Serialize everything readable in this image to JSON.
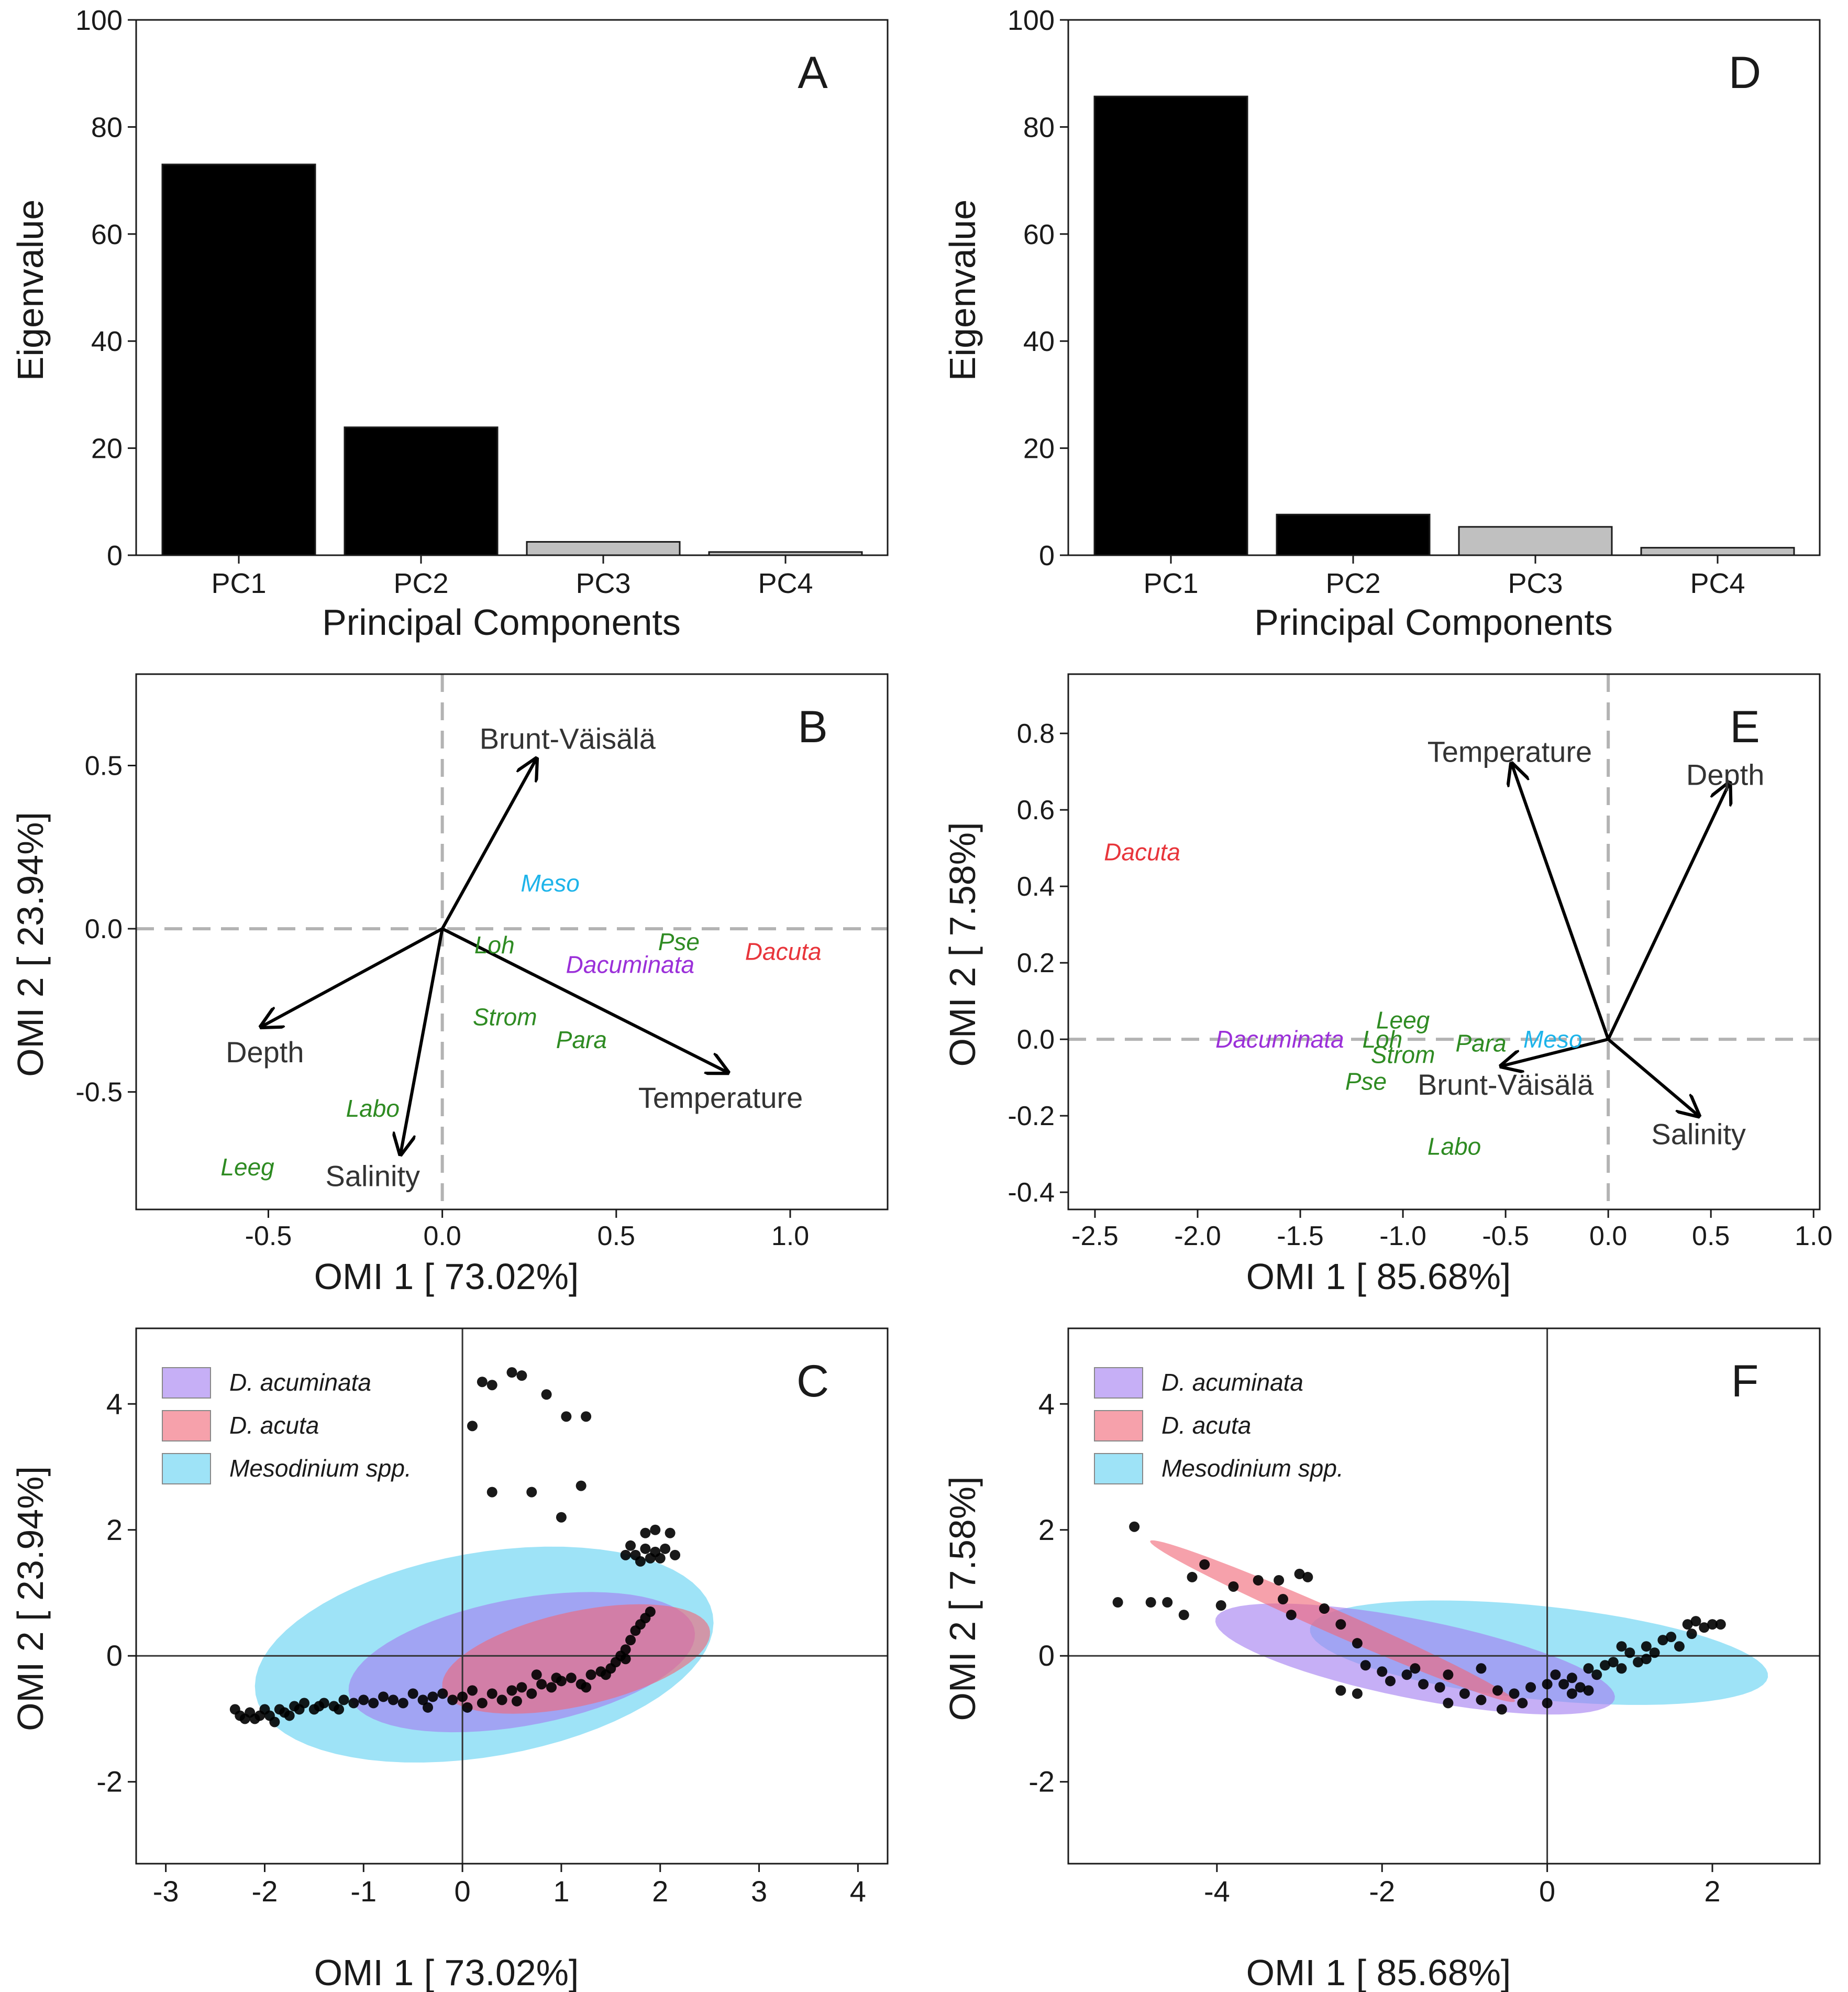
{
  "colors": {
    "bar_primary": "#000000",
    "bar_secondary": "#c0c0c0",
    "loading": "#000000",
    "guide": "#b3b3b3",
    "species_group": "#2e8b22",
    "meso": "#1eb4ea",
    "dacuminata": "#9b30d9",
    "dacuta": "#e8353b",
    "ellipse_acuminata": "#a37ef0",
    "ellipse_acuta": "#f06878",
    "ellipse_meso": "#62d2f2",
    "point": "#000000",
    "point_meso": "#0b3a4a",
    "point_acuminata": "#2a1460",
    "point_acuta": "#5a1038"
  },
  "chart_data": [
    {
      "panel": "A",
      "type": "bar",
      "categories": [
        "PC1",
        "PC2",
        "PC3",
        "PC4"
      ],
      "values": [
        73.0,
        23.9,
        2.5,
        0.6
      ],
      "retained": [
        true,
        true,
        false,
        false
      ],
      "xlabel": "Principal Components",
      "ylabel": "Eigenvalue",
      "ylim": [
        0,
        100
      ],
      "yticks": [
        "0",
        "20",
        "40",
        "60",
        "80",
        "100"
      ]
    },
    {
      "panel": "D",
      "type": "bar",
      "categories": [
        "PC1",
        "PC2",
        "PC3",
        "PC4"
      ],
      "values": [
        85.7,
        7.6,
        5.3,
        1.4
      ],
      "retained": [
        true,
        true,
        false,
        false
      ],
      "xlabel": "Principal Components",
      "ylabel": "Eigenvalue",
      "ylim": [
        0,
        100
      ],
      "yticks": [
        "0",
        "20",
        "40",
        "60",
        "80",
        "100"
      ]
    },
    {
      "panel": "B",
      "type": "scatter",
      "subtype": "biplot",
      "xlabel": "OMI 1 [ 73.02%]",
      "ylabel": "OMI 2 [ 23.94%]",
      "xlim": [
        -0.88,
        1.28
      ],
      "ylim": [
        -0.86,
        0.78
      ],
      "xticks": [
        "-0.5",
        "0.0",
        "0.5",
        "1.0"
      ],
      "yticks": [
        "-0.5",
        "0.0",
        "0.5"
      ],
      "arrows": [
        {
          "label": "Brunt-Väisälä",
          "x": 0.27,
          "y": 0.52,
          "lx": 0.36,
          "ly": 0.58
        },
        {
          "label": "Depth",
          "x": -0.52,
          "y": -0.3,
          "lx": -0.51,
          "ly": -0.38
        },
        {
          "label": "Salinity",
          "x": -0.12,
          "y": -0.69,
          "lx": -0.2,
          "ly": -0.76
        },
        {
          "label": "Temperature",
          "x": 0.82,
          "y": -0.44,
          "lx": 0.8,
          "ly": -0.52
        }
      ],
      "species": [
        {
          "label": "Meso",
          "x": 0.31,
          "y": 0.14,
          "group": "meso"
        },
        {
          "label": "Loh",
          "x": 0.15,
          "y": -0.05,
          "group": "other"
        },
        {
          "label": "Pse",
          "x": 0.68,
          "y": -0.04,
          "group": "other"
        },
        {
          "label": "Dacuminata",
          "x": 0.54,
          "y": -0.11,
          "group": "dacuminata"
        },
        {
          "label": "Dacuta",
          "x": 0.98,
          "y": -0.07,
          "group": "dacuta"
        },
        {
          "label": "Strom",
          "x": 0.18,
          "y": -0.27,
          "group": "other"
        },
        {
          "label": "Para",
          "x": 0.4,
          "y": -0.34,
          "group": "other"
        },
        {
          "label": "Labo",
          "x": -0.2,
          "y": -0.55,
          "group": "other"
        },
        {
          "label": "Leeg",
          "x": -0.56,
          "y": -0.73,
          "group": "other"
        }
      ]
    },
    {
      "panel": "E",
      "type": "scatter",
      "subtype": "biplot",
      "xlabel": "OMI 1 [ 85.68%]",
      "ylabel": "OMI 2 [ 7.58%]",
      "xlim": [
        -2.63,
        1.03
      ],
      "ylim": [
        -0.445,
        0.955
      ],
      "xticks": [
        "-2.5",
        "-2.0",
        "-1.5",
        "-1.0",
        "-0.5",
        "0.0",
        "0.5",
        "1.0"
      ],
      "yticks": [
        "-0.4",
        "-0.2",
        "0.0",
        "0.2",
        "0.4",
        "0.6",
        "0.8"
      ],
      "arrows": [
        {
          "label": "Temperature",
          "x": -0.47,
          "y": 0.72,
          "lx": -0.48,
          "ly": 0.75
        },
        {
          "label": "Depth",
          "x": 0.59,
          "y": 0.67,
          "lx": 0.57,
          "ly": 0.69
        },
        {
          "label": "Brunt-Väisälä",
          "x": -0.52,
          "y": -0.07,
          "lx": -0.5,
          "ly": -0.12
        },
        {
          "label": "Salinity",
          "x": 0.44,
          "y": -0.2,
          "lx": 0.44,
          "ly": -0.25
        }
      ],
      "species": [
        {
          "label": "Dacuta",
          "x": -2.27,
          "y": 0.49,
          "group": "dacuta"
        },
        {
          "label": "Dacuminata",
          "x": -1.6,
          "y": 0.0,
          "group": "dacuminata"
        },
        {
          "label": "Loh",
          "x": -1.1,
          "y": 0.0,
          "group": "other"
        },
        {
          "label": "Leeg",
          "x": -1.0,
          "y": 0.05,
          "group": "other"
        },
        {
          "label": "Strom",
          "x": -1.0,
          "y": -0.04,
          "group": "other"
        },
        {
          "label": "Para",
          "x": -0.62,
          "y": -0.01,
          "group": "other"
        },
        {
          "label": "Meso",
          "x": -0.27,
          "y": 0.0,
          "group": "meso"
        },
        {
          "label": "Pse",
          "x": -1.18,
          "y": -0.11,
          "group": "other"
        },
        {
          "label": "Labo",
          "x": -0.75,
          "y": -0.28,
          "group": "other"
        }
      ]
    },
    {
      "panel": "C",
      "type": "scatter",
      "subtype": "niche-ellipses",
      "xlabel": "OMI 1 [ 73.02%]",
      "ylabel": "OMI 2 [ 23.94%]",
      "xlim": [
        -3.3,
        4.3
      ],
      "ylim": [
        -3.3,
        5.2
      ],
      "xticks": [
        "-3",
        "-2",
        "-1",
        "0",
        "1",
        "2",
        "3",
        "4"
      ],
      "yticks": [
        "-2",
        "0",
        "2",
        "4"
      ],
      "legend": [
        {
          "label": "D. acuminata",
          "color": "ellipse_acuminata"
        },
        {
          "label": "D. acuta",
          "color": "ellipse_acuta"
        },
        {
          "label": "Mesodinium spp.",
          "color": "ellipse_meso"
        }
      ],
      "ellipses": [
        {
          "name": "Mesodinium spp.",
          "color": "ellipse_meso",
          "cx": 0.22,
          "cy": 0.02,
          "rx": 2.42,
          "ry": 1.57,
          "angle_deg": 22
        },
        {
          "name": "D. acuminata",
          "color": "ellipse_acuminata",
          "cx": 0.6,
          "cy": -0.1,
          "rx": 1.83,
          "ry": 0.98,
          "angle_deg": 20
        },
        {
          "name": "D. acuta",
          "color": "ellipse_acuta",
          "cx": 1.15,
          "cy": -0.05,
          "rx": 1.44,
          "ry": 0.72,
          "angle_deg": 23
        }
      ],
      "points": [
        [
          -2.3,
          -0.85
        ],
        [
          -2.25,
          -0.95
        ],
        [
          -2.2,
          -1.0
        ],
        [
          -2.15,
          -0.9
        ],
        [
          -2.1,
          -1.0
        ],
        [
          -2.05,
          -0.95
        ],
        [
          -2.0,
          -0.85
        ],
        [
          -1.95,
          -0.95
        ],
        [
          -1.9,
          -1.05
        ],
        [
          -1.85,
          -0.85
        ],
        [
          -1.8,
          -0.9
        ],
        [
          -1.75,
          -0.95
        ],
        [
          -1.7,
          -0.8
        ],
        [
          -1.65,
          -0.85
        ],
        [
          -1.6,
          -0.75
        ],
        [
          -1.5,
          -0.85
        ],
        [
          -1.45,
          -0.8
        ],
        [
          -1.4,
          -0.75
        ],
        [
          -1.3,
          -0.8
        ],
        [
          -1.25,
          -0.85
        ],
        [
          -1.2,
          -0.7
        ],
        [
          -1.1,
          -0.75
        ],
        [
          -1.0,
          -0.7
        ],
        [
          -0.9,
          -0.75
        ],
        [
          -0.8,
          -0.65
        ],
        [
          -0.7,
          -0.7
        ],
        [
          -0.6,
          -0.75
        ],
        [
          -0.5,
          -0.6
        ],
        [
          -0.4,
          -0.7
        ],
        [
          -0.3,
          -0.65
        ],
        [
          -0.2,
          -0.6
        ],
        [
          -0.1,
          -0.7
        ],
        [
          0.0,
          -0.65
        ],
        [
          0.1,
          -0.55
        ],
        [
          0.2,
          -0.75
        ],
        [
          0.3,
          -0.6
        ],
        [
          0.4,
          -0.7
        ],
        [
          0.5,
          -0.55
        ],
        [
          0.6,
          -0.5
        ],
        [
          0.7,
          -0.6
        ],
        [
          0.8,
          -0.45
        ],
        [
          0.9,
          -0.5
        ],
        [
          1.0,
          -0.4
        ],
        [
          1.1,
          -0.35
        ],
        [
          1.2,
          -0.45
        ],
        [
          1.3,
          -0.3
        ],
        [
          1.4,
          -0.25
        ],
        [
          1.5,
          -0.2
        ],
        [
          1.55,
          -0.1
        ],
        [
          1.6,
          0.0
        ],
        [
          1.65,
          0.1
        ],
        [
          1.7,
          0.25
        ],
        [
          1.75,
          0.4
        ],
        [
          1.8,
          0.5
        ],
        [
          1.85,
          0.6
        ],
        [
          1.9,
          0.7
        ],
        [
          1.65,
          -0.05
        ],
        [
          1.45,
          -0.3
        ],
        [
          1.25,
          -0.5
        ],
        [
          0.95,
          -0.35
        ],
        [
          0.55,
          -0.72
        ],
        [
          0.05,
          -0.82
        ],
        [
          -0.35,
          -0.82
        ],
        [
          0.75,
          -0.3
        ],
        [
          1.65,
          1.6
        ],
        [
          1.7,
          1.75
        ],
        [
          1.75,
          1.6
        ],
        [
          1.8,
          1.5
        ],
        [
          1.85,
          1.7
        ],
        [
          1.9,
          1.55
        ],
        [
          1.95,
          1.65
        ],
        [
          2.0,
          1.55
        ],
        [
          2.05,
          1.7
        ],
        [
          2.15,
          1.6
        ],
        [
          1.85,
          1.95
        ],
        [
          1.95,
          2.0
        ],
        [
          2.1,
          1.95
        ],
        [
          0.2,
          4.35
        ],
        [
          0.3,
          4.3
        ],
        [
          0.5,
          4.5
        ],
        [
          0.6,
          4.45
        ],
        [
          0.85,
          4.15
        ],
        [
          1.05,
          3.8
        ],
        [
          1.25,
          3.8
        ],
        [
          0.1,
          3.65
        ],
        [
          0.3,
          2.6
        ],
        [
          0.7,
          2.6
        ],
        [
          1.2,
          2.7
        ],
        [
          1.0,
          2.2
        ]
      ]
    },
    {
      "panel": "F",
      "type": "scatter",
      "subtype": "niche-ellipses",
      "xlabel": "OMI 1 [ 85.68%]",
      "ylabel": "OMI 2 [ 7.58%]",
      "xlim": [
        -5.8,
        3.3
      ],
      "ylim": [
        -3.3,
        5.2
      ],
      "xticks": [
        "-4",
        "-2",
        "0",
        "2"
      ],
      "yticks": [
        "-2",
        "0",
        "2",
        "4"
      ],
      "legend": [
        {
          "label": "D. acuminata",
          "color": "ellipse_acuminata"
        },
        {
          "label": "D. acuta",
          "color": "ellipse_acuta"
        },
        {
          "label": "Mesodinium spp.",
          "color": "ellipse_meso"
        }
      ],
      "ellipses": [
        {
          "name": "Mesodinium spp.",
          "color": "ellipse_meso",
          "cx": -0.1,
          "cy": 0.05,
          "rx": 2.8,
          "ry": 0.74,
          "angle_deg": -8
        },
        {
          "name": "D. acuminata",
          "color": "ellipse_acuminata",
          "cx": -1.6,
          "cy": -0.05,
          "rx": 2.5,
          "ry": 0.62,
          "angle_deg": -15
        },
        {
          "name": "D. acuta",
          "color": "ellipse_acuta",
          "cx": -2.6,
          "cy": 0.55,
          "rx": 2.55,
          "ry": 0.18,
          "angle_deg": -30
        }
      ],
      "points": [
        [
          -5.2,
          0.85
        ],
        [
          -5.0,
          2.05
        ],
        [
          -4.8,
          0.85
        ],
        [
          -4.6,
          0.85
        ],
        [
          -4.4,
          0.65
        ],
        [
          -4.3,
          1.25
        ],
        [
          -4.15,
          1.45
        ],
        [
          -3.95,
          0.8
        ],
        [
          -3.8,
          1.1
        ],
        [
          -3.5,
          1.2
        ],
        [
          -3.25,
          1.2
        ],
        [
          -3.2,
          0.9
        ],
        [
          -3.1,
          0.65
        ],
        [
          -3.0,
          1.3
        ],
        [
          -2.9,
          1.25
        ],
        [
          -2.7,
          0.75
        ],
        [
          -2.5,
          0.5
        ],
        [
          -2.3,
          0.2
        ],
        [
          -2.2,
          -0.15
        ],
        [
          -2.0,
          -0.25
        ],
        [
          -1.9,
          -0.4
        ],
        [
          -1.7,
          -0.3
        ],
        [
          -1.5,
          -0.45
        ],
        [
          -1.3,
          -0.5
        ],
        [
          -1.2,
          -0.75
        ],
        [
          -1.0,
          -0.6
        ],
        [
          -0.8,
          -0.7
        ],
        [
          -0.6,
          -0.55
        ],
        [
          -0.4,
          -0.6
        ],
        [
          -0.2,
          -0.5
        ],
        [
          0.0,
          -0.45
        ],
        [
          0.1,
          -0.3
        ],
        [
          0.2,
          -0.45
        ],
        [
          0.3,
          -0.35
        ],
        [
          0.4,
          -0.5
        ],
        [
          0.5,
          -0.2
        ],
        [
          0.6,
          -0.3
        ],
        [
          0.7,
          -0.15
        ],
        [
          0.8,
          -0.1
        ],
        [
          0.9,
          -0.2
        ],
        [
          1.0,
          0.05
        ],
        [
          1.1,
          -0.1
        ],
        [
          1.2,
          0.15
        ],
        [
          1.3,
          0.05
        ],
        [
          1.4,
          0.25
        ],
        [
          1.5,
          0.3
        ],
        [
          1.6,
          0.15
        ],
        [
          1.7,
          0.5
        ],
        [
          1.8,
          0.55
        ],
        [
          1.9,
          0.45
        ],
        [
          2.0,
          0.5
        ],
        [
          2.1,
          0.5
        ],
        [
          -2.5,
          -0.55
        ],
        [
          -2.3,
          -0.6
        ],
        [
          -1.2,
          -0.3
        ],
        [
          -0.55,
          -0.85
        ],
        [
          -0.3,
          -0.75
        ],
        [
          0.0,
          -0.75
        ],
        [
          -0.8,
          -0.2
        ],
        [
          -1.6,
          -0.2
        ],
        [
          0.3,
          -0.6
        ],
        [
          0.9,
          0.15
        ],
        [
          1.2,
          -0.05
        ],
        [
          0.5,
          -0.55
        ],
        [
          1.75,
          0.35
        ]
      ]
    }
  ]
}
